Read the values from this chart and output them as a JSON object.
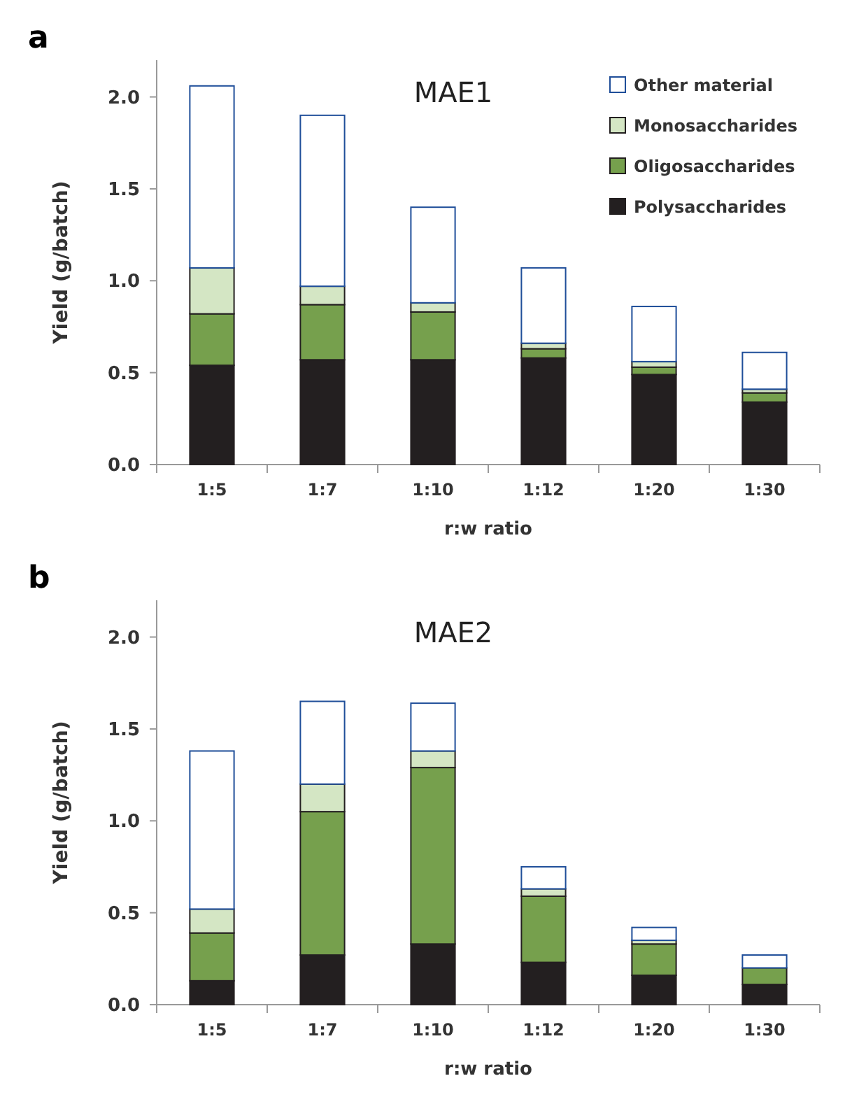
{
  "chart_data": [
    {
      "type": "bar",
      "title": "MAE1",
      "annotations": [
        "a"
      ],
      "xlabel": "r:w ratio",
      "ylabel": "Yield (g/batch)",
      "categories": [
        "1:5",
        "1:7",
        "1:10",
        "1:12",
        "1:20",
        "1:30"
      ],
      "stacked": true,
      "ylim": [
        0,
        2.2
      ],
      "yticks": [
        {
          "value": 0,
          "label": "0.0"
        },
        {
          "value": 0.5,
          "label": "0.5"
        },
        {
          "value": 1,
          "label": "1.0"
        },
        {
          "value": 1.5,
          "label": "1.5"
        },
        {
          "value": 2,
          "label": "2.0"
        }
      ],
      "legend": "top right",
      "series": [
        {
          "name": "Polysaccharides",
          "color": "#231f20",
          "values": [
            0.54,
            0.57,
            0.57,
            0.58,
            0.49,
            0.34
          ]
        },
        {
          "name": "Oligosaccharides",
          "color": "#76a04d",
          "values": [
            0.28,
            0.3,
            0.26,
            0.05,
            0.04,
            0.05
          ]
        },
        {
          "name": "Monosaccharides",
          "color": "#d4e6c4",
          "values": [
            0.25,
            0.1,
            0.05,
            0.03,
            0.03,
            0.02
          ]
        },
        {
          "name": "Other material",
          "color": "#ffffff",
          "values": [
            0.99,
            0.93,
            0.52,
            0.41,
            0.3,
            0.2
          ]
        }
      ]
    },
    {
      "type": "bar",
      "title": "MAE2",
      "annotations": [
        "b"
      ],
      "xlabel": "r:w ratio",
      "ylabel": "Yield (g/batch)",
      "categories": [
        "1:5",
        "1:7",
        "1:10",
        "1:12",
        "1:20",
        "1:30"
      ],
      "stacked": true,
      "ylim": [
        0,
        2.2
      ],
      "yticks": [
        {
          "value": 0,
          "label": "0.0"
        },
        {
          "value": 0.5,
          "label": "0.5"
        },
        {
          "value": 1,
          "label": "1.0"
        },
        {
          "value": 1.5,
          "label": "1.5"
        },
        {
          "value": 2,
          "label": "2.0"
        }
      ],
      "series": [
        {
          "color": "#231f20",
          "values": [
            0.13,
            0.27,
            0.33,
            0.23,
            0.16,
            0.11
          ]
        },
        {
          "color": "#76a04d",
          "values": [
            0.26,
            0.78,
            0.96,
            0.36,
            0.17,
            0.09
          ]
        },
        {
          "color": "#d4e6c4",
          "values": [
            0.13,
            0.15,
            0.09,
            0.04,
            0.02,
            null
          ]
        },
        {
          "color": "#ffffff",
          "values": [
            0.86,
            0.45,
            0.26,
            0.12,
            0.07,
            0.07
          ]
        }
      ]
    }
  ]
}
